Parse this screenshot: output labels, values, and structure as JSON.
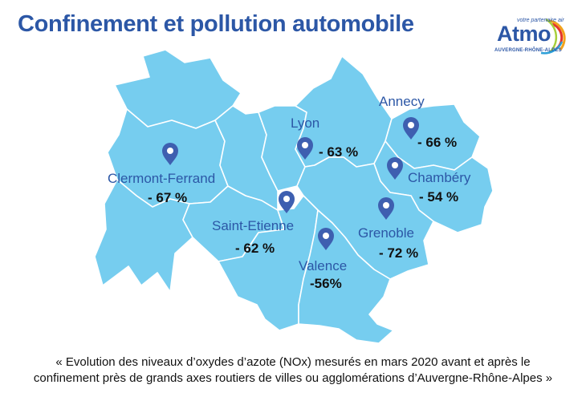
{
  "title": "Confinement et pollution automobile",
  "logo": {
    "tagline": "votre partenaire air",
    "wordmark": "Atmo",
    "region": "AUVERGNE-RHÔNE-ALPES"
  },
  "colors": {
    "title": "#2c57a6",
    "map_fill": "#76cdef",
    "map_border": "#ffffff",
    "pin": "#3e5fb0"
  },
  "cities": [
    {
      "name": "Lyon",
      "change": "- 63 %"
    },
    {
      "name": "Annecy",
      "change": "- 66 %"
    },
    {
      "name": "Chambéry",
      "change": "- 54 %"
    },
    {
      "name": "Clermont-Ferrand",
      "change": "- 67 %"
    },
    {
      "name": "Saint-Etienne",
      "change": "- 62 %"
    },
    {
      "name": "Grenoble",
      "change": "- 72 %"
    },
    {
      "name": "Valence",
      "change": "-56%"
    }
  ],
  "caption": {
    "line1": "« Evolution des niveaux d’oxydes d’azote (NOx) mesurés en mars 2020 avant et après le",
    "line2": "confinement près de grands axes routiers de villes ou agglomérations d’Auvergne-Rhône-Alpes »"
  }
}
